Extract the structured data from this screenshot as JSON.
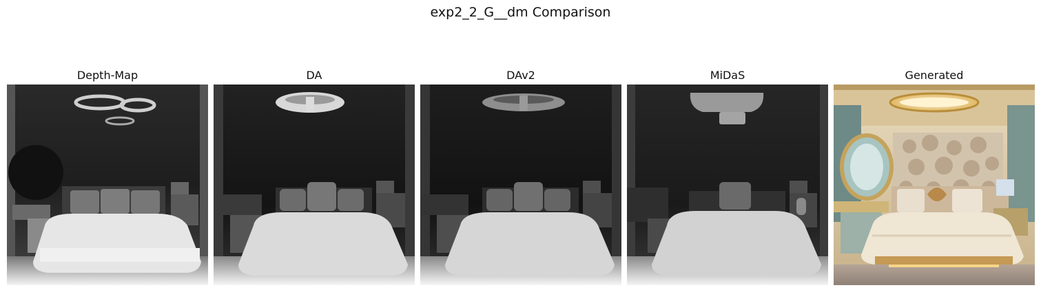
{
  "figure": {
    "title": "exp2_2_G__dm Comparison"
  },
  "panels": [
    {
      "title": "Depth-Map",
      "kind": "depth-map"
    },
    {
      "title": "DA",
      "kind": "depth-map"
    },
    {
      "title": "DAv2",
      "kind": "depth-map"
    },
    {
      "title": "MiDaS",
      "kind": "depth-map"
    },
    {
      "title": "Generated",
      "kind": "photo"
    }
  ],
  "colors": {
    "background": "#ffffff",
    "depth_far": "#1c1c1c",
    "depth_near": "#ececec",
    "photo_gold": "#c9a45c",
    "photo_cream": "#efe6d4"
  }
}
